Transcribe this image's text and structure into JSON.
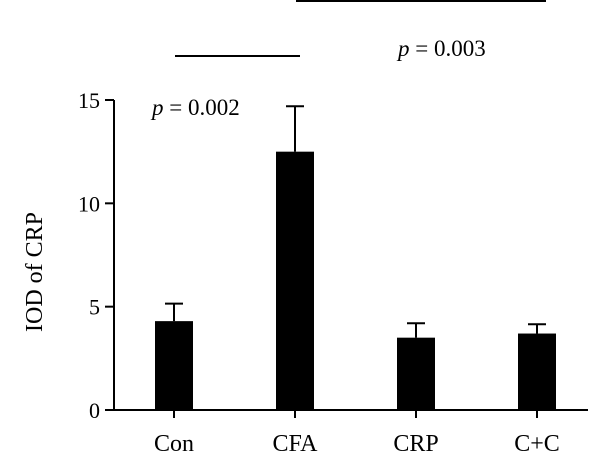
{
  "chart_data": {
    "type": "bar",
    "categories": [
      "Con",
      "CFA",
      "CRP",
      "C+C"
    ],
    "values": [
      4.3,
      12.5,
      3.5,
      3.7
    ],
    "errors": [
      0.85,
      2.2,
      0.7,
      0.45
    ],
    "title": "",
    "xlabel": "",
    "ylabel": "IOD of CRP",
    "ylim": [
      0,
      15
    ],
    "yticks": [
      0,
      5,
      10,
      15
    ],
    "bar_color": "#000000",
    "grid": false,
    "annotations": [
      {
        "p_symbol": "p",
        "text": " = 0.002",
        "from": "Con",
        "to": "CFA"
      },
      {
        "p_symbol": "p",
        "text": " = 0.003",
        "from": "CFA",
        "to": "C+C"
      }
    ]
  }
}
